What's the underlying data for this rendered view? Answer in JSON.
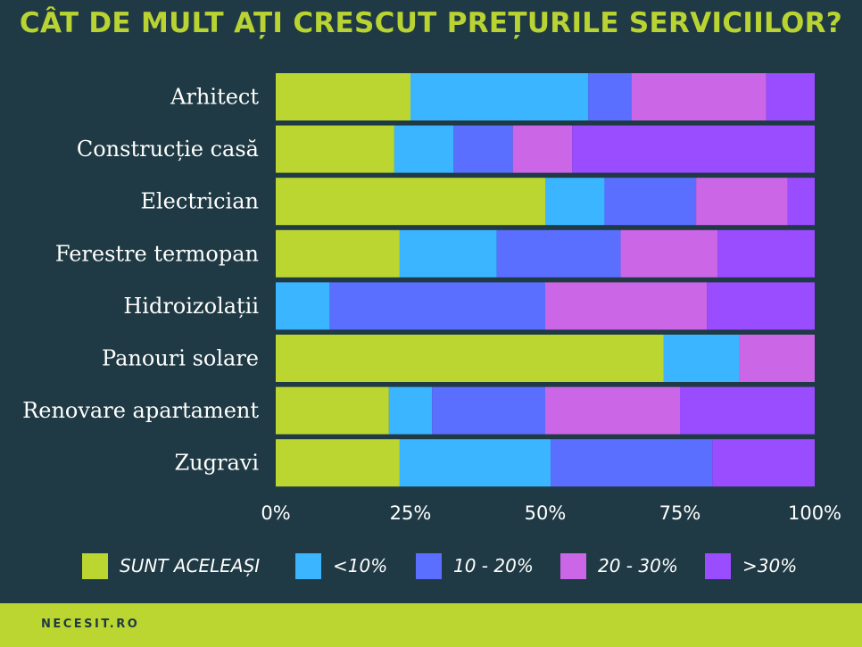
{
  "title": "CÂT DE MULT AȚI CRESCUT PREȚURILE SERVICIILOR?",
  "footer": {
    "brand": "NECESIT.RO"
  },
  "chart_data": {
    "type": "bar",
    "orientation": "horizontal",
    "stacked": true,
    "title": "CÂT DE MULT AȚI CRESCUT PREȚURILE SERVICIILOR?",
    "xlabel": "",
    "ylabel": "",
    "xlim": [
      0,
      100
    ],
    "ticks": [
      "0%",
      "25%",
      "50%",
      "75%",
      "100%"
    ],
    "tick_values": [
      0,
      25,
      50,
      75,
      100
    ],
    "legend_position": "bottom",
    "categories": [
      "Arhitect",
      "Construcție casă",
      "Electrician",
      "Ferestre termopan",
      "Hidroizolații",
      "Panouri solare",
      "Renovare apartament",
      "Zugravi"
    ],
    "series": [
      {
        "name": "SUNT ACELEAȘI",
        "color": "#bcd631",
        "values": [
          25,
          22,
          50,
          23,
          0,
          72,
          21,
          23
        ]
      },
      {
        "name": "<10%",
        "color": "#3bb5ff",
        "values": [
          33,
          11,
          11,
          18,
          10,
          14,
          8,
          28
        ]
      },
      {
        "name": "10 - 20%",
        "color": "#5a6fff",
        "values": [
          8,
          11,
          17,
          23,
          40,
          0,
          21,
          30
        ]
      },
      {
        "name": "20 - 30%",
        "color": "#cb66e6",
        "values": [
          25,
          11,
          17,
          18,
          30,
          14,
          25,
          0
        ]
      },
      {
        "name": ">30%",
        "color": "#9a4cff",
        "values": [
          9,
          45,
          5,
          18,
          20,
          0,
          25,
          19
        ]
      }
    ]
  }
}
